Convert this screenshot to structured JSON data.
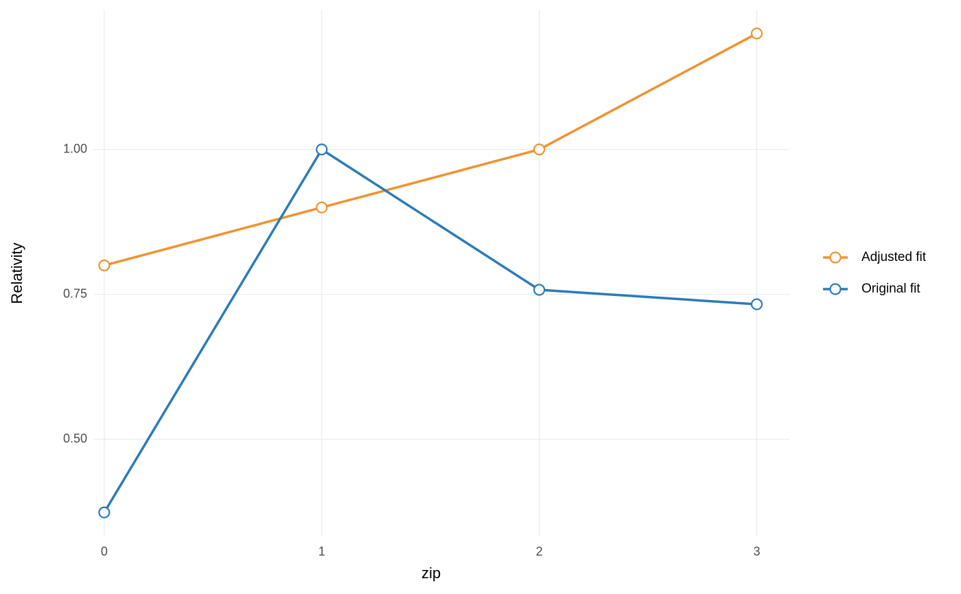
{
  "chart_data": {
    "type": "line",
    "x_label": "zip",
    "y_label": "Relativity",
    "x": [
      0,
      1,
      2,
      3
    ],
    "series": [
      {
        "name": "Adjusted fit",
        "color": "#f0922e",
        "values": [
          0.8,
          0.9,
          1.0,
          1.2
        ]
      },
      {
        "name": "Original fit",
        "color": "#2b7bb9",
        "values": [
          0.374,
          1.0,
          0.758,
          0.733
        ]
      }
    ],
    "xlim": [
      -0.05,
      3.15
    ],
    "xticks": [
      0,
      1,
      2,
      3
    ],
    "ylim": [
      0.334,
      1.24
    ],
    "yticks": [
      {
        "value": 0.5,
        "label": "0.50"
      },
      {
        "value": 0.75,
        "label": "0.75"
      },
      {
        "value": 1,
        "label": "1.00"
      }
    ],
    "grid": true,
    "legend": "right"
  }
}
